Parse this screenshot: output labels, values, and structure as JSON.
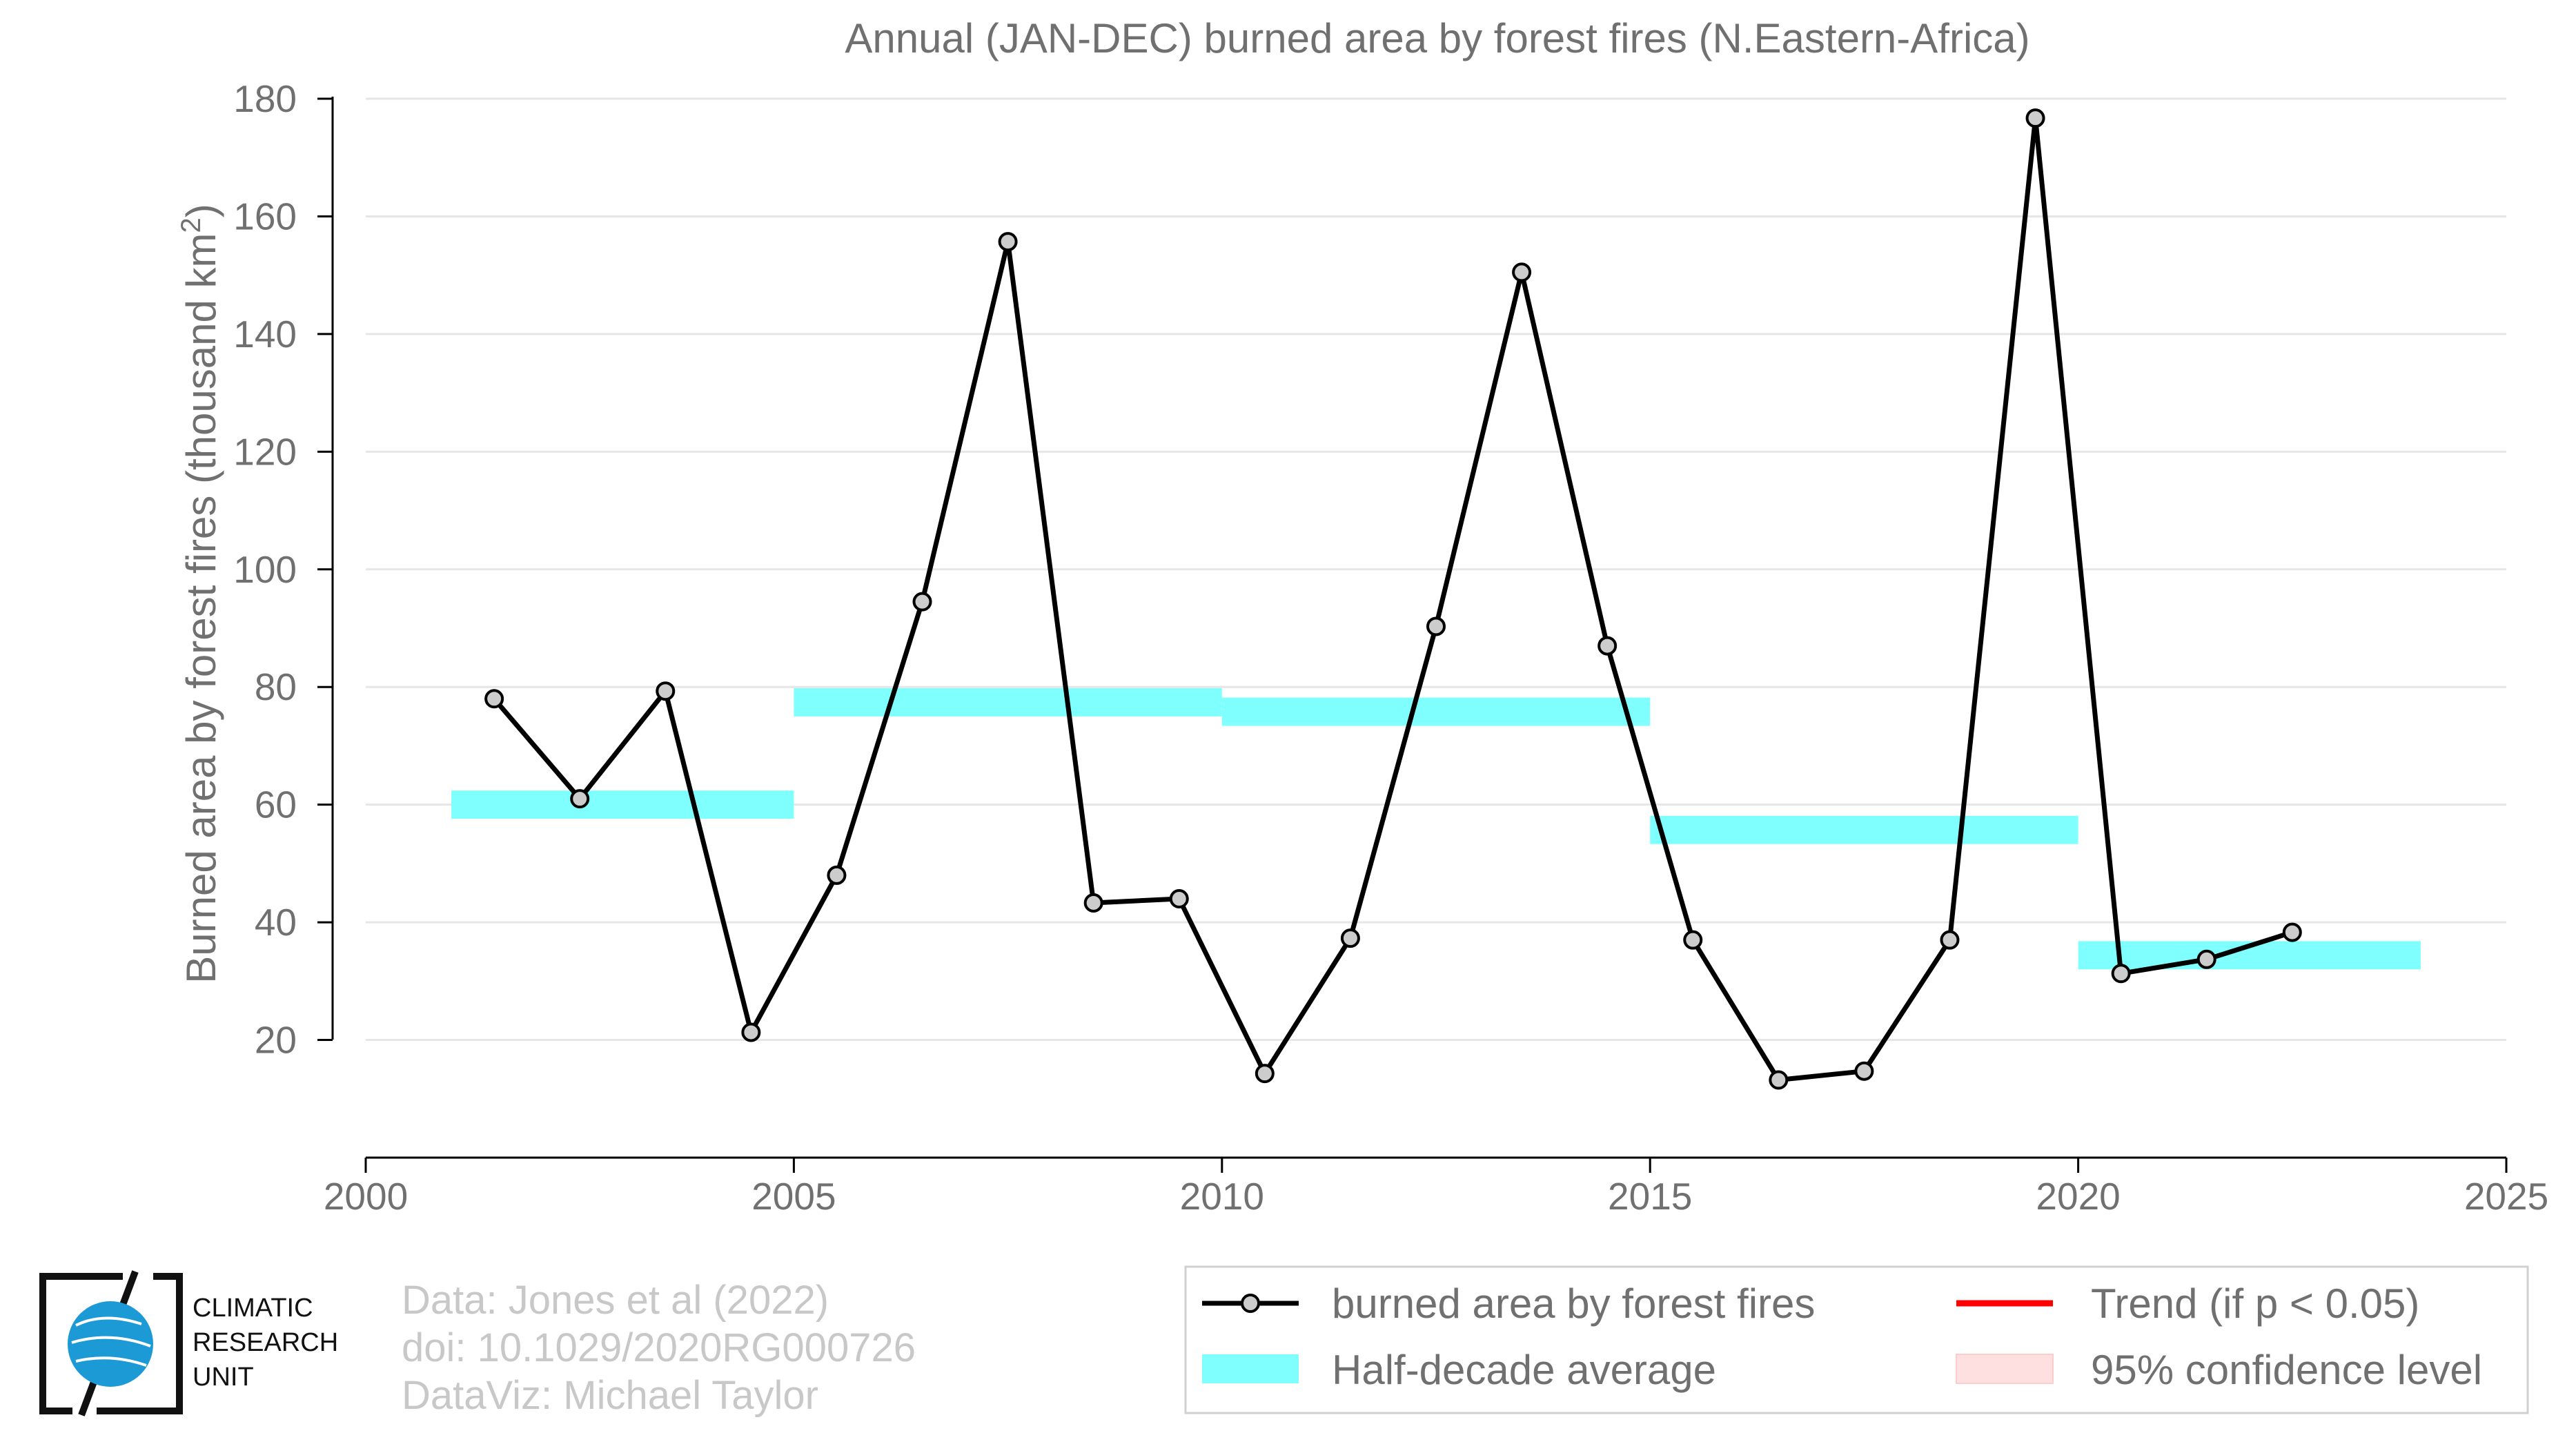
{
  "chart_data": {
    "type": "line",
    "title": "Annual (JAN-DEC) burned area by forest fires (N.Eastern-Africa)",
    "ylabel_main": "Burned area by forest fires (thousand km",
    "ylabel_sup": "2",
    "ylabel_close": ")",
    "xlim": [
      2000,
      2025
    ],
    "ylim": [
      0,
      180
    ],
    "xticks": [
      2000,
      2005,
      2010,
      2015,
      2020,
      2025
    ],
    "yticks": [
      20,
      40,
      60,
      80,
      100,
      120,
      140,
      160,
      180
    ],
    "grid": true,
    "series": [
      {
        "name": "burned area by forest fires",
        "color": "#000000",
        "x": [
          2001.5,
          2002.5,
          2003.5,
          2004.5,
          2005.5,
          2006.5,
          2007.5,
          2008.5,
          2009.5,
          2010.5,
          2011.5,
          2012.5,
          2013.5,
          2014.5,
          2015.5,
          2016.5,
          2017.5,
          2018.5,
          2019.5,
          2020.5,
          2021.5,
          2022.5
        ],
        "values": [
          78,
          61,
          79.3,
          21.3,
          48,
          94.5,
          155.7,
          43.3,
          44,
          14.3,
          37.3,
          90.3,
          150.5,
          87,
          37,
          13.2,
          14.7,
          37,
          176.7,
          31.3,
          33.7,
          38.3
        ]
      }
    ],
    "half_decade_average": {
      "name": "Half-decade average",
      "color": "#80ffff",
      "segments": [
        {
          "start": 2001,
          "end": 2005,
          "value": 60
        },
        {
          "start": 2005,
          "end": 2010,
          "value": 77.4
        },
        {
          "start": 2010,
          "end": 2015,
          "value": 75.8
        },
        {
          "start": 2015,
          "end": 2020,
          "value": 55.7
        },
        {
          "start": 2020,
          "end": 2024,
          "value": 34.4
        }
      ]
    },
    "legend": {
      "placement": "bottom-right",
      "entries": [
        {
          "label": "burned area by forest fires",
          "kind": "line-marker",
          "color": "#000000"
        },
        {
          "label": "Trend (if p < 0.05)",
          "kind": "line",
          "color": "#ff0000"
        },
        {
          "label": "Half-decade average",
          "kind": "band",
          "color": "#80ffff"
        },
        {
          "label": "95% confidence level",
          "kind": "band",
          "color": "#ffe0e0"
        }
      ]
    }
  },
  "credits": {
    "line1": "Data: Jones et al (2022)",
    "line2": "doi: 10.1029/2020RG000726",
    "line3": "DataViz: Michael Taylor"
  },
  "logo": {
    "line1": "CLIMATIC",
    "line2": "RESEARCH",
    "line3": "UNIT"
  }
}
